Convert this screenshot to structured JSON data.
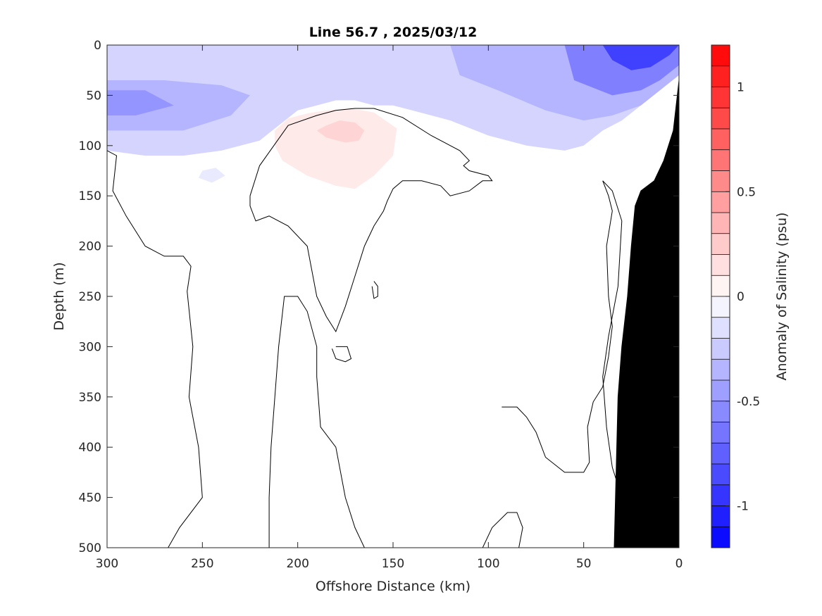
{
  "chart_data": {
    "type": "heatmap",
    "title": "Line 56.7 , 2025/03/12",
    "xlabel": "Offshore Distance (km)",
    "ylabel": "Depth (m)",
    "xlim": [
      300,
      0
    ],
    "ylim": [
      0,
      500
    ],
    "x_reversed": true,
    "y_reversed": true,
    "x_ticks": [
      "300",
      "250",
      "200",
      "150",
      "100",
      "50",
      "0"
    ],
    "x_tick_values": [
      300,
      250,
      200,
      150,
      100,
      50,
      0
    ],
    "y_ticks": [
      "0",
      "50",
      "100",
      "150",
      "200",
      "250",
      "300",
      "350",
      "400",
      "450",
      "500"
    ],
    "y_tick_values": [
      0,
      50,
      100,
      150,
      200,
      250,
      300,
      350,
      400,
      450,
      500
    ],
    "colorbar": {
      "label": "Anomaly of Salinity (psu)",
      "range": [
        -1.2,
        1.2
      ],
      "step": 0.1,
      "tick_labels": [
        "1",
        "0.5",
        "0",
        "-0.5",
        "-1"
      ],
      "tick_values": [
        1,
        0.5,
        0,
        -0.5,
        -1
      ],
      "low_color": "#0000ff",
      "mid_color": "#ffffff",
      "high_color": "#ff0000"
    },
    "regions": [
      {
        "name": "surface-fresh-layer",
        "anomaly": -0.2,
        "x": [
          300,
          280,
          260,
          240,
          220,
          200,
          180,
          160,
          140,
          120,
          100,
          80,
          60,
          50,
          40,
          35,
          30,
          25,
          20,
          10,
          5,
          0,
          0,
          5,
          10,
          20,
          30,
          40,
          50,
          60,
          80,
          100,
          120,
          140,
          150,
          160,
          170,
          180,
          190,
          200,
          210,
          220,
          240,
          260,
          280,
          300
        ],
        "y": [
          0,
          0,
          0,
          0,
          0,
          0,
          0,
          0,
          0,
          0,
          0,
          0,
          0,
          0,
          0,
          0,
          0,
          0,
          0,
          0,
          0,
          0,
          25,
          35,
          45,
          60,
          75,
          85,
          100,
          105,
          100,
          90,
          75,
          65,
          60,
          60,
          55,
          55,
          60,
          65,
          80,
          95,
          105,
          110,
          110,
          105
        ]
      },
      {
        "name": "surface-core-west",
        "anomaly": -0.35,
        "x": [
          300,
          270,
          240,
          225,
          235,
          260,
          300
        ],
        "y": [
          35,
          35,
          40,
          50,
          70,
          85,
          85
        ]
      },
      {
        "name": "surface-core-west-inner",
        "anomaly": -0.5,
        "x": [
          300,
          280,
          265,
          285,
          300
        ],
        "y": [
          45,
          45,
          60,
          70,
          70
        ]
      },
      {
        "name": "surface-core-east",
        "anomaly": -0.35,
        "x": [
          120,
          90,
          60,
          40,
          25,
          15,
          5,
          0,
          0,
          10,
          20,
          35,
          50,
          70,
          95,
          115
        ],
        "y": [
          0,
          0,
          0,
          0,
          0,
          0,
          0,
          0,
          30,
          45,
          60,
          70,
          75,
          65,
          45,
          30
        ]
      },
      {
        "name": "surface-core-east-mid",
        "anomaly": -0.6,
        "x": [
          60,
          40,
          25,
          15,
          5,
          0,
          0,
          10,
          20,
          35,
          55
        ],
        "y": [
          0,
          0,
          0,
          0,
          0,
          0,
          20,
          35,
          45,
          50,
          35
        ]
      },
      {
        "name": "surface-core-east-inner",
        "anomaly": -0.9,
        "x": [
          40,
          25,
          15,
          5,
          0,
          5,
          15,
          25,
          35
        ],
        "y": [
          0,
          0,
          0,
          0,
          0,
          10,
          22,
          25,
          15
        ]
      },
      {
        "name": "small-fresh-patch",
        "anomaly": -0.1,
        "x": [
          250,
          243,
          238,
          245,
          252
        ],
        "y": [
          125,
          122,
          130,
          137,
          132
        ]
      },
      {
        "name": "subsurface-salty-lens",
        "anomaly": 0.1,
        "x": [
          212,
          205,
          195,
          185,
          172,
          160,
          148,
          150,
          160,
          170,
          180,
          195,
          208,
          212
        ],
        "y": [
          85,
          73,
          68,
          65,
          63,
          67,
          83,
          110,
          130,
          143,
          140,
          130,
          115,
          100
        ]
      },
      {
        "name": "salty-lens-core",
        "anomaly": 0.2,
        "x": [
          190,
          185,
          178,
          170,
          165,
          168,
          175,
          185
        ],
        "y": [
          85,
          80,
          75,
          77,
          85,
          95,
          97,
          92
        ]
      }
    ],
    "zero_contours": [
      {
        "name": "upper-zero-contour",
        "x": [
          225,
          220,
          205,
          190,
          180,
          170,
          160,
          145,
          130,
          115,
          110,
          113,
          110,
          100,
          98,
          103,
          110,
          120,
          125,
          135,
          145,
          150,
          153,
          155,
          160,
          165,
          170,
          175,
          180,
          185,
          190,
          192,
          195,
          205,
          215,
          222,
          225,
          225
        ],
        "y": [
          150,
          120,
          80,
          70,
          65,
          63,
          63,
          72,
          90,
          105,
          115,
          120,
          125,
          130,
          135,
          135,
          145,
          150,
          140,
          135,
          135,
          143,
          155,
          165,
          180,
          200,
          230,
          260,
          285,
          270,
          250,
          230,
          200,
          180,
          170,
          175,
          160,
          150
        ]
      },
      {
        "name": "west-zero-contour",
        "x": [
          300,
          295,
          297,
          290,
          280,
          270,
          260,
          256,
          258,
          255,
          257,
          252,
          250,
          262,
          268
        ],
        "y": [
          105,
          110,
          145,
          170,
          200,
          210,
          210,
          220,
          245,
          300,
          350,
          400,
          450,
          480,
          500
        ]
      },
      {
        "name": "mid-west-zero-contour",
        "x": [
          215,
          215,
          214,
          212,
          210,
          207,
          200,
          195,
          190,
          190,
          188,
          180,
          175,
          170,
          165
        ],
        "y": [
          500,
          450,
          400,
          350,
          300,
          250,
          250,
          265,
          300,
          330,
          380,
          400,
          450,
          480,
          500
        ]
      },
      {
        "name": "deep-small-loop",
        "x": [
          180,
          174,
          172,
          175,
          180,
          182
        ],
        "y": [
          300,
          300,
          312,
          315,
          312,
          302
        ]
      },
      {
        "name": "tiny-loop",
        "x": [
          160,
          158,
          158,
          160,
          161
        ],
        "y": [
          235,
          240,
          250,
          252,
          240
        ]
      },
      {
        "name": "deep-east-loop",
        "x": [
          103,
          98,
          90,
          85,
          82,
          84
        ],
        "y": [
          500,
          480,
          465,
          465,
          480,
          500
        ]
      },
      {
        "name": "east-zero-contour",
        "x": [
          93,
          85,
          80,
          75,
          70,
          60,
          50,
          47,
          48,
          45,
          40,
          37,
          35,
          37,
          38,
          35,
          37,
          40
        ],
        "y": [
          360,
          360,
          370,
          385,
          410,
          425,
          425,
          415,
          380,
          355,
          340,
          310,
          280,
          250,
          200,
          165,
          150,
          135
        ]
      },
      {
        "name": "shelf-zero-contour",
        "x": [
          40,
          35,
          30,
          32,
          37,
          40,
          38,
          35,
          30
        ],
        "y": [
          135,
          145,
          175,
          240,
          290,
          330,
          380,
          420,
          450
        ]
      }
    ],
    "land_mask": {
      "name": "seafloor-bathymetry",
      "x": [
        0,
        0,
        3,
        8,
        13,
        20,
        23,
        25,
        27,
        30,
        32,
        34,
        0
      ],
      "y": [
        0,
        35,
        85,
        115,
        135,
        145,
        160,
        200,
        250,
        300,
        350,
        500,
        500
      ]
    }
  }
}
